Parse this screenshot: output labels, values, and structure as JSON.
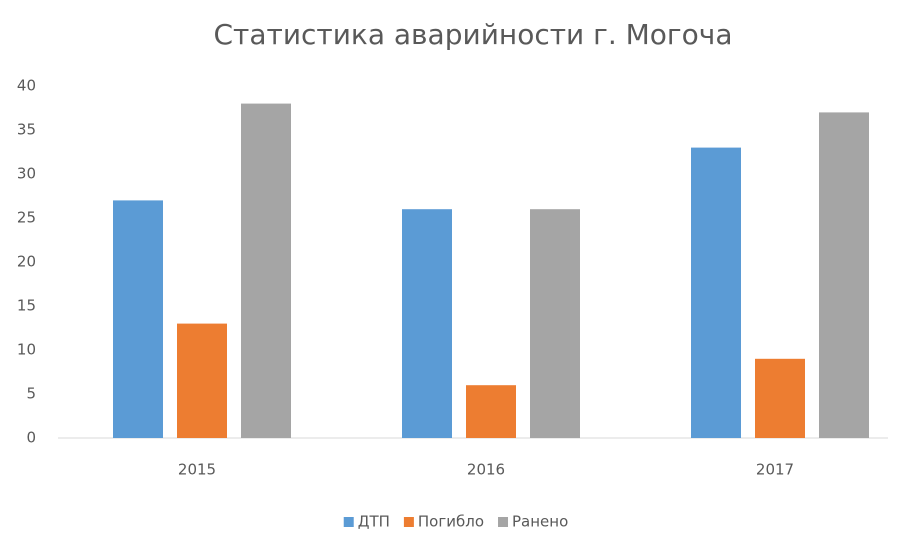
{
  "chart_data": {
    "type": "bar",
    "title": "Статистика аварийности г. Могоча",
    "categories": [
      "2015",
      "2016",
      "2017"
    ],
    "series": [
      {
        "name": "ДТП",
        "color": "#5b9bd5",
        "values": [
          27,
          26,
          33
        ]
      },
      {
        "name": "Погибло",
        "color": "#ed7d31",
        "values": [
          13,
          6,
          9
        ]
      },
      {
        "name": "Ранено",
        "color": "#a5a5a5",
        "values": [
          38,
          26,
          37
        ]
      }
    ],
    "ylim": [
      0,
      40
    ],
    "yticks": [
      0,
      5,
      10,
      15,
      20,
      25,
      30,
      35,
      40
    ],
    "grid": false,
    "legend": "bottom"
  }
}
